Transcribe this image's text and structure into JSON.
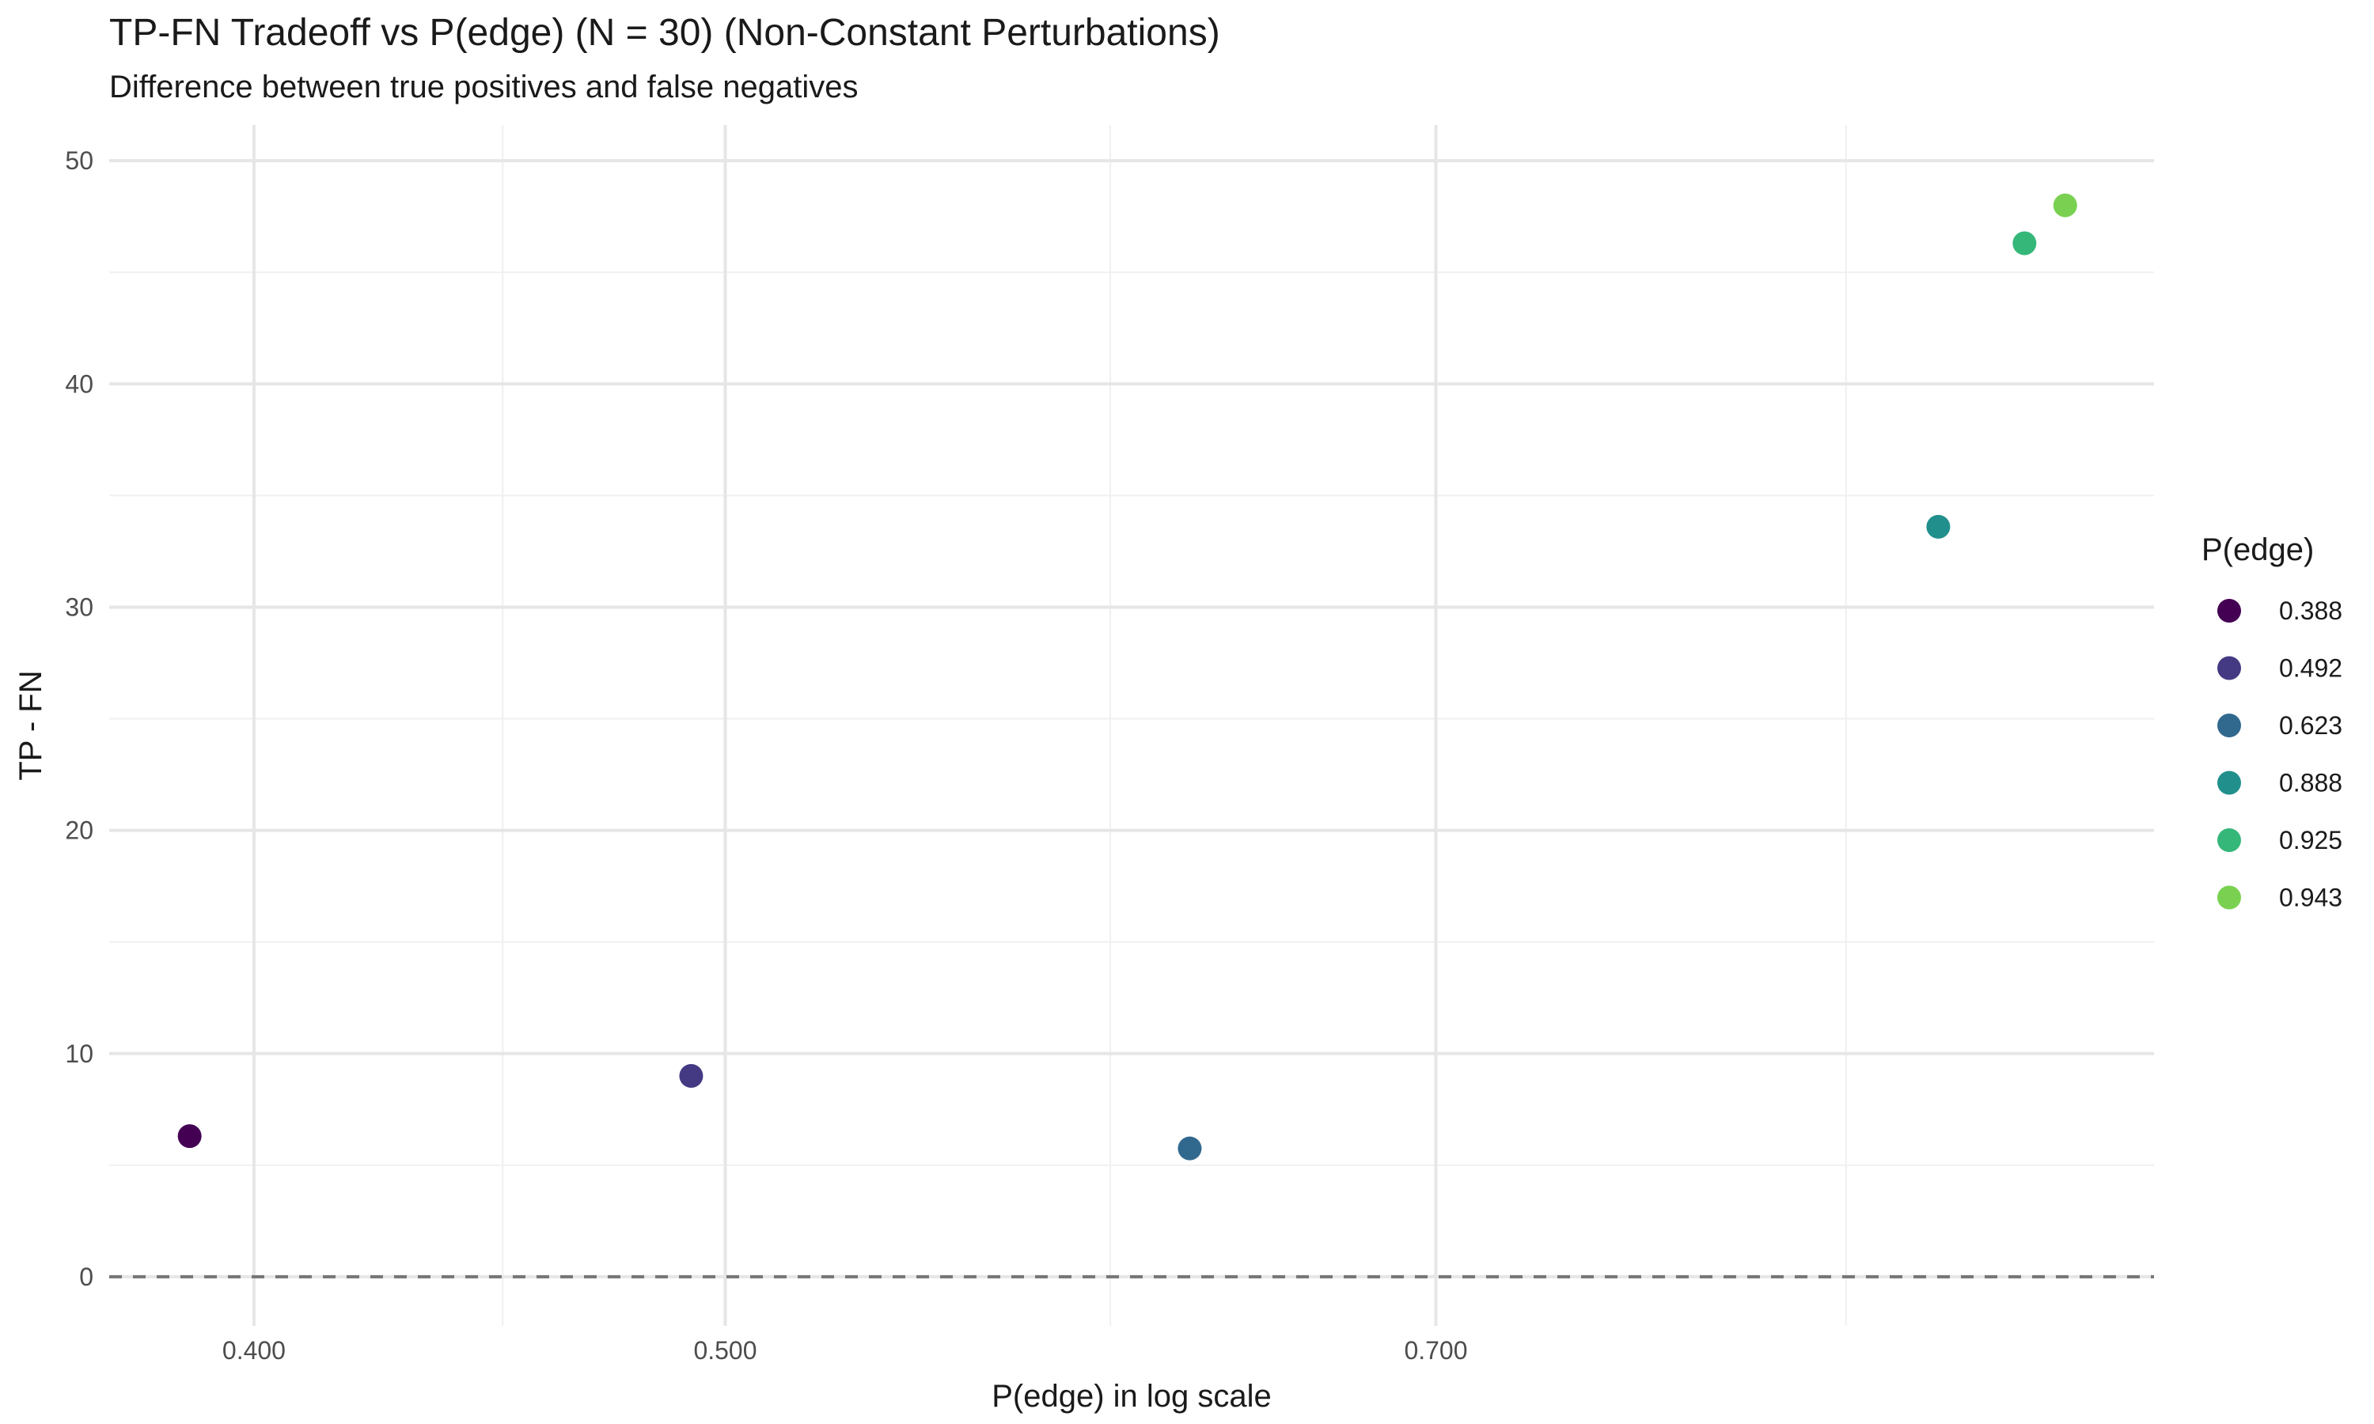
{
  "chart_data": {
    "type": "scatter",
    "title": "TP-FN Tradeoff vs P(edge) (N = 30) (Non-Constant Perturbations)",
    "subtitle": "Difference between true positives and false negatives",
    "xlabel": "P(edge) in log scale",
    "ylabel": "TP - FN",
    "x_scale": "log",
    "xlim": [
      0.3735,
      0.9835
    ],
    "ylim": [
      -2.2,
      51.6
    ],
    "x_ticks": [
      {
        "value": 0.4,
        "label": "0.400"
      },
      {
        "value": 0.5,
        "label": "0.500"
      },
      {
        "value": 0.7,
        "label": "0.700"
      }
    ],
    "x_minor_ticks": [
      0.45,
      0.6,
      0.85
    ],
    "y_ticks": [
      {
        "value": 0,
        "label": "0"
      },
      {
        "value": 10,
        "label": "10"
      },
      {
        "value": 20,
        "label": "20"
      },
      {
        "value": 30,
        "label": "30"
      },
      {
        "value": 40,
        "label": "40"
      },
      {
        "value": 50,
        "label": "50"
      }
    ],
    "y_minor_ticks": [
      5,
      15,
      25,
      35,
      45
    ],
    "reference_line": {
      "y": 0,
      "style": "dashed",
      "color": "#757575"
    },
    "grid": true,
    "legend": {
      "title": "P(edge)",
      "position": "right"
    },
    "points": [
      {
        "x": 0.388,
        "y": 6.3,
        "label": "0.388",
        "color": "#440154"
      },
      {
        "x": 0.492,
        "y": 9.0,
        "label": "0.492",
        "color": "#443A83"
      },
      {
        "x": 0.623,
        "y": 5.75,
        "label": "0.623",
        "color": "#31688E"
      },
      {
        "x": 0.888,
        "y": 33.6,
        "label": "0.888",
        "color": "#21908C"
      },
      {
        "x": 0.925,
        "y": 46.3,
        "label": "0.925",
        "color": "#35B779"
      },
      {
        "x": 0.943,
        "y": 48.0,
        "label": "0.943",
        "color": "#7AD151"
      }
    ]
  }
}
